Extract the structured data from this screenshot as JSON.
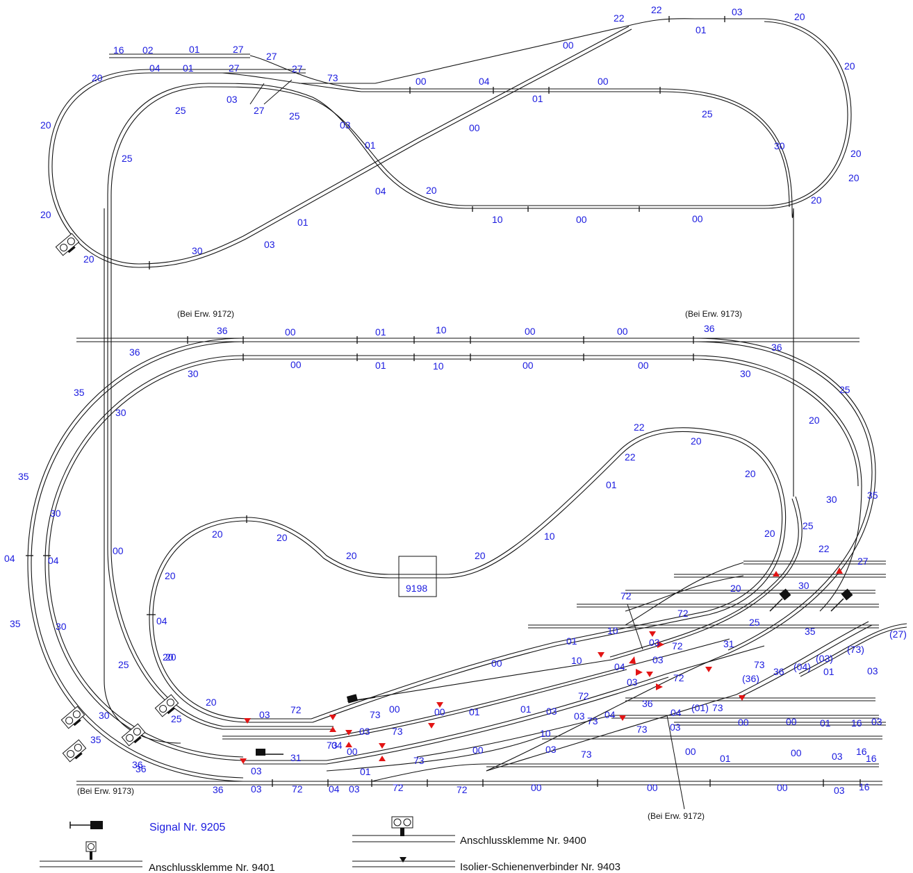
{
  "diagram": {
    "box_label": "9198",
    "notes": [
      "(Bei Erw. 9172)",
      "(Bei Erw. 9173)",
      "(Bei Erw. 9173)",
      "(Bei Erw. 9172)"
    ],
    "track_labels": [
      "16",
      "02",
      "01",
      "27",
      "27",
      "27",
      "73",
      "00",
      "04",
      "00",
      "22",
      "22",
      "01",
      "03",
      "20",
      "20",
      "20",
      "04",
      "01",
      "27",
      "03",
      "27",
      "25",
      "25",
      "03",
      "01",
      "00",
      "01",
      "00",
      "04",
      "20",
      "25",
      "30",
      "20",
      "20",
      "20",
      "25",
      "01",
      "03",
      "30",
      "20",
      "10",
      "00",
      "00",
      "20",
      "20",
      "36",
      "00",
      "01",
      "10",
      "00",
      "00",
      "36",
      "36",
      "36",
      "30",
      "00",
      "01",
      "10",
      "00",
      "00",
      "30",
      "35",
      "30",
      "25",
      "20",
      "35",
      "30",
      "35",
      "04",
      "04",
      "00",
      "22",
      "20",
      "22",
      "01",
      "20",
      "10",
      "20",
      "20",
      "20",
      "20",
      "20",
      "20",
      "20",
      "04",
      "20",
      "25",
      "30",
      "22",
      "27",
      "20",
      "25",
      "30",
      "72",
      "72",
      "10",
      "01",
      "00",
      "10",
      "31",
      "73",
      "35",
      "03",
      "72",
      "03",
      "72",
      "04",
      "03",
      "36",
      "00",
      "73",
      "01",
      "03",
      "72",
      "04",
      "00",
      "01",
      "03",
      "73",
      "04",
      "(01)",
      "73",
      "03",
      "73",
      "00",
      "00",
      "01",
      "16",
      "03",
      "10",
      "03",
      "00",
      "00",
      "01",
      "00",
      "03",
      "16",
      "16",
      "73",
      "03",
      "31",
      "01",
      "73",
      "36",
      "03",
      "72",
      "04",
      "03",
      "72",
      "72",
      "00",
      "00",
      "00",
      "03",
      "16",
      "35",
      "30",
      "30",
      "35",
      "36",
      "36",
      "25",
      "25",
      "20",
      "03",
      "72",
      "73",
      "00",
      "04",
      "03",
      "73",
      "(73)",
      "(04)",
      "(03)",
      "(27)",
      "(36)",
      "36",
      "01",
      "03"
    ],
    "legend": {
      "signal": "Signal Nr. 9205",
      "clamp_9401": "Anschlussklemme Nr. 9401",
      "clamp_9400": "Anschlussklemme Nr. 9400",
      "isolator": "Isolier-Schienenverbinder Nr. 9403"
    },
    "colors": {
      "label": "#1a1adf",
      "isolator": "#e31414",
      "track": "#111111"
    }
  }
}
